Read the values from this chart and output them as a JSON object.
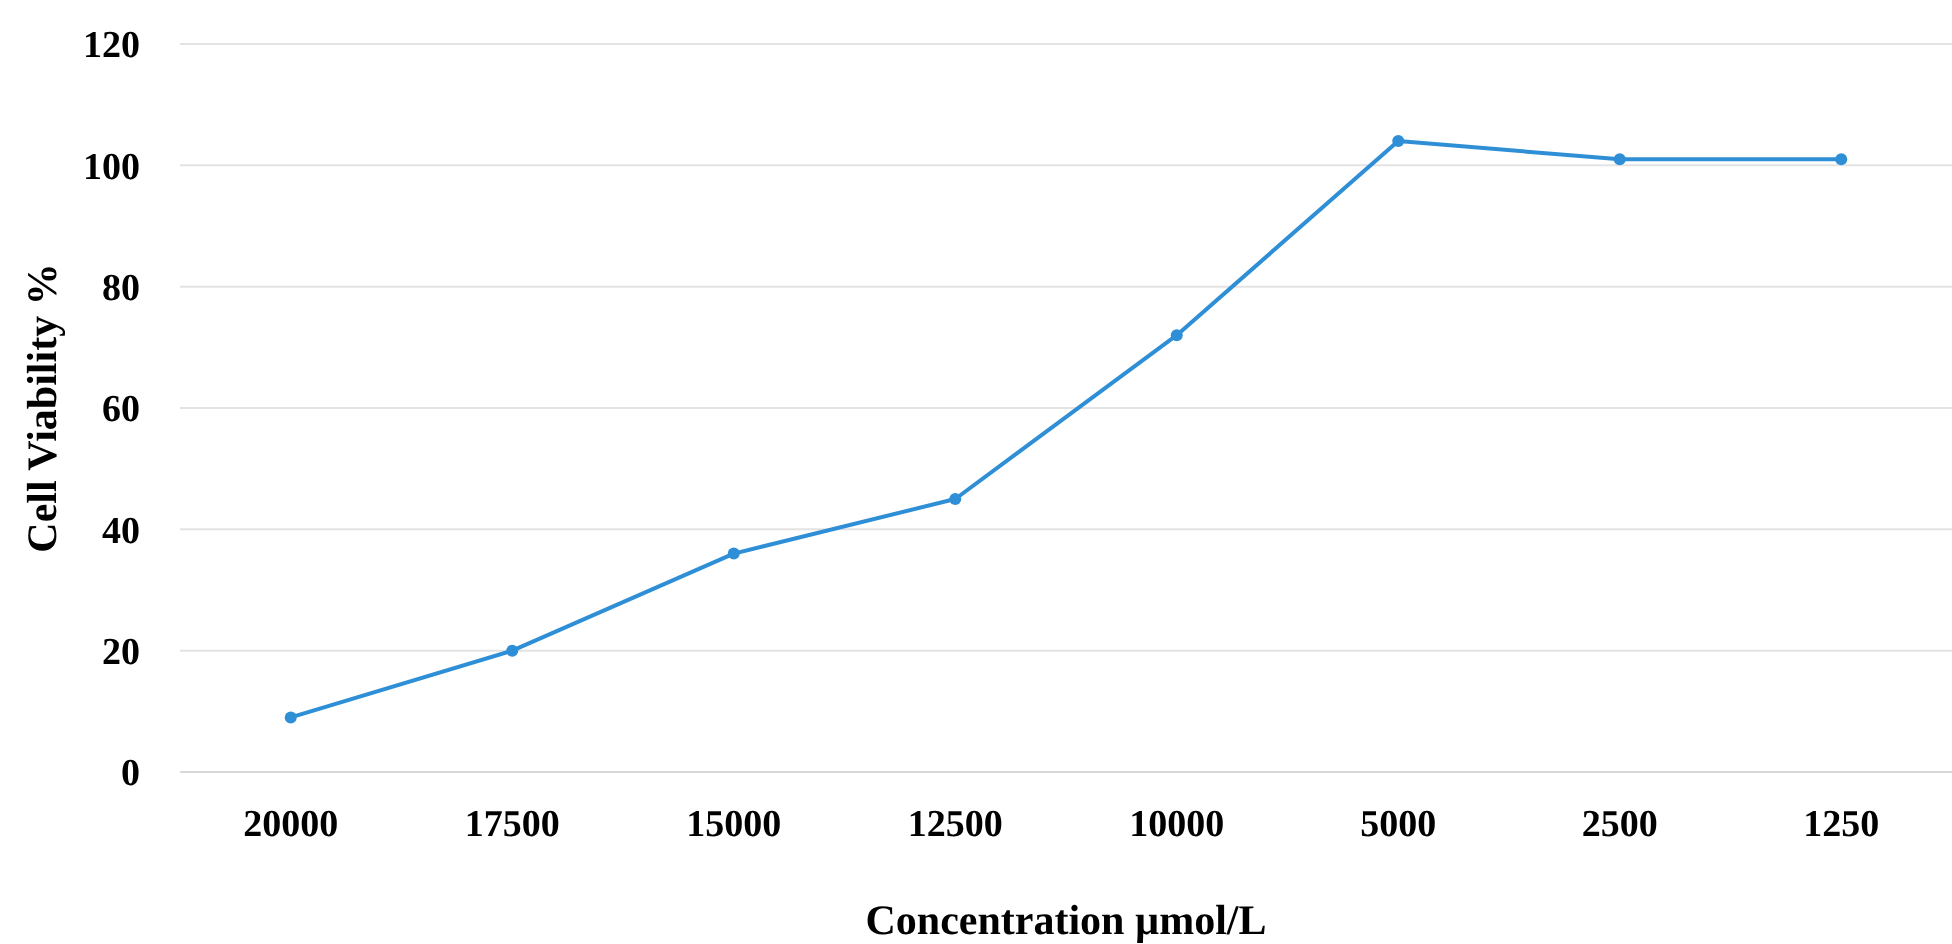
{
  "chart_data": {
    "type": "line",
    "xlabel": "Concentration µmol/L",
    "ylabel": "Cell Viability %",
    "categories": [
      "20000",
      "17500",
      "15000",
      "12500",
      "10000",
      "5000",
      "2500",
      "1250"
    ],
    "series": [
      {
        "color": "#2e8fd6",
        "values": [
          9,
          20,
          36,
          45,
          72,
          104,
          101,
          101
        ]
      }
    ],
    "ylim": [
      0,
      120
    ],
    "yticks": [
      0,
      20,
      40,
      60,
      80,
      100,
      120
    ],
    "grid": "y",
    "marker": "circle",
    "line_style": "solid"
  }
}
